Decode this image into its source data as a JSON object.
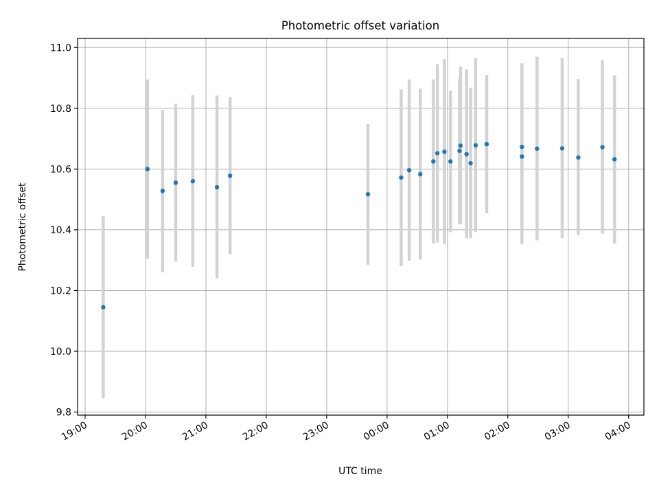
{
  "chart_data": {
    "type": "scatter",
    "title": "Photometric offset variation",
    "xlabel": "UTC time",
    "ylabel": "Photometric offset",
    "x_axis": {
      "kind": "time",
      "ticks": [
        "19:00",
        "20:00",
        "21:00",
        "22:00",
        "23:00",
        "00:00",
        "01:00",
        "02:00",
        "03:00",
        "04:00"
      ],
      "range": [
        "19:00",
        "04:07"
      ]
    },
    "y_axis": {
      "ticks": [
        "9.8",
        "10.0",
        "10.2",
        "10.4",
        "10.6",
        "10.8",
        "11.0"
      ],
      "range": [
        9.79,
        11.03
      ]
    },
    "grid": true,
    "colors": {
      "point": "#1f77b4",
      "errorbar": "#d3d3d3",
      "grid": "#b0b0b0"
    },
    "series": [
      {
        "points": [
          {
            "x": "19:18",
            "y": 10.145,
            "ylow": 9.845,
            "yhigh": 10.445
          },
          {
            "x": "20:02",
            "y": 10.6,
            "ylow": 10.305,
            "yhigh": 10.895
          },
          {
            "x": "20:17",
            "y": 10.528,
            "ylow": 10.26,
            "yhigh": 10.795
          },
          {
            "x": "20:30",
            "y": 10.555,
            "ylow": 10.295,
            "yhigh": 10.815
          },
          {
            "x": "20:47",
            "y": 10.56,
            "ylow": 10.278,
            "yhigh": 10.843
          },
          {
            "x": "21:11",
            "y": 10.54,
            "ylow": 10.24,
            "yhigh": 10.842
          },
          {
            "x": "21:24",
            "y": 10.578,
            "ylow": 10.32,
            "yhigh": 10.837
          },
          {
            "x": "23:41",
            "y": 10.517,
            "ylow": 10.285,
            "yhigh": 10.748
          },
          {
            "x": "00:14",
            "y": 10.572,
            "ylow": 10.28,
            "yhigh": 10.862
          },
          {
            "x": "00:22",
            "y": 10.596,
            "ylow": 10.298,
            "yhigh": 10.895
          },
          {
            "x": "00:33",
            "y": 10.583,
            "ylow": 10.302,
            "yhigh": 10.865
          },
          {
            "x": "00:46",
            "y": 10.625,
            "ylow": 10.355,
            "yhigh": 10.895
          },
          {
            "x": "00:50",
            "y": 10.652,
            "ylow": 10.358,
            "yhigh": 10.945
          },
          {
            "x": "00:57",
            "y": 10.657,
            "ylow": 10.352,
            "yhigh": 10.962
          },
          {
            "x": "01:03",
            "y": 10.625,
            "ylow": 10.392,
            "yhigh": 10.858
          },
          {
            "x": "01:12",
            "y": 10.66,
            "ylow": 10.418,
            "yhigh": 10.898
          },
          {
            "x": "01:13",
            "y": 10.677,
            "ylow": 10.418,
            "yhigh": 10.938
          },
          {
            "x": "01:19",
            "y": 10.649,
            "ylow": 10.372,
            "yhigh": 10.928
          },
          {
            "x": "01:23",
            "y": 10.619,
            "ylow": 10.372,
            "yhigh": 10.868
          },
          {
            "x": "01:28",
            "y": 10.678,
            "ylow": 10.393,
            "yhigh": 10.965
          },
          {
            "x": "01:39",
            "y": 10.682,
            "ylow": 10.455,
            "yhigh": 10.91
          },
          {
            "x": "02:14",
            "y": 10.673,
            "ylow": 10.415,
            "yhigh": 10.928
          },
          {
            "x": "02:14",
            "y": 10.641,
            "ylow": 10.352,
            "yhigh": 10.948
          },
          {
            "x": "02:29",
            "y": 10.667,
            "ylow": 10.365,
            "yhigh": 10.97
          },
          {
            "x": "02:54",
            "y": 10.668,
            "ylow": 10.372,
            "yhigh": 10.966
          },
          {
            "x": "03:10",
            "y": 10.638,
            "ylow": 10.383,
            "yhigh": 10.896
          },
          {
            "x": "03:34",
            "y": 10.672,
            "ylow": 10.387,
            "yhigh": 10.958
          },
          {
            "x": "03:46",
            "y": 10.632,
            "ylow": 10.355,
            "yhigh": 10.909
          }
        ]
      }
    ]
  }
}
